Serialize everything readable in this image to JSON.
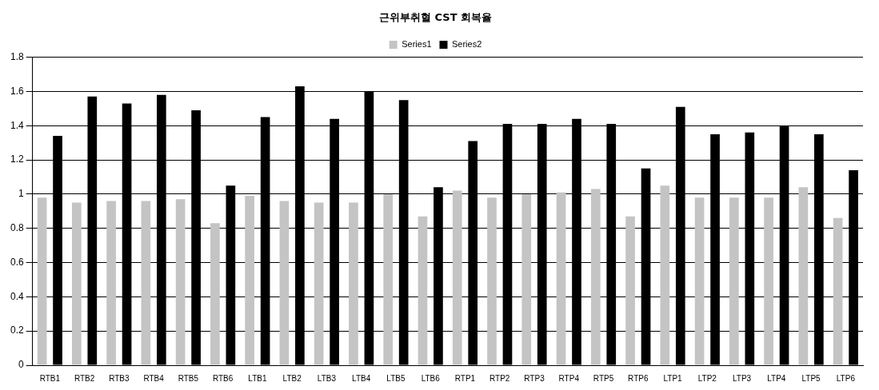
{
  "chart_data": {
    "type": "bar",
    "title": "근위부취혈 CST 회복율",
    "categories": [
      "RTB1",
      "RTB2",
      "RTB3",
      "RTB4",
      "RTB5",
      "RTB6",
      "LTB1",
      "LTB2",
      "LTB3",
      "LTB4",
      "LTB5",
      "LTB6",
      "RTP1",
      "RTP2",
      "RTP3",
      "RTP4",
      "RTP5",
      "RTP6",
      "LTP1",
      "LTP2",
      "LTP3",
      "LTP4",
      "LTP5",
      "LTP6"
    ],
    "series": [
      {
        "name": "Series1",
        "color": "#c4c4c4",
        "values": [
          0.98,
          0.95,
          0.96,
          0.96,
          0.97,
          0.83,
          0.99,
          0.96,
          0.95,
          0.95,
          1.0,
          0.87,
          1.02,
          0.98,
          1.0,
          1.01,
          1.03,
          0.87,
          1.05,
          0.98,
          0.98,
          0.98,
          1.04,
          0.86
        ]
      },
      {
        "name": "Series2",
        "color": "#000000",
        "values": [
          1.34,
          1.57,
          1.53,
          1.58,
          1.49,
          1.05,
          1.45,
          1.63,
          1.44,
          1.6,
          1.55,
          1.04,
          1.31,
          1.41,
          1.41,
          1.44,
          1.41,
          1.15,
          1.51,
          1.35,
          1.36,
          1.4,
          1.35,
          1.14
        ]
      }
    ],
    "ylim": [
      0,
      1.8
    ],
    "yticks": [
      0,
      0.2,
      0.4,
      0.6,
      0.8,
      1,
      1.2,
      1.4,
      1.6,
      1.8
    ],
    "grid": "y",
    "legend": "top"
  }
}
